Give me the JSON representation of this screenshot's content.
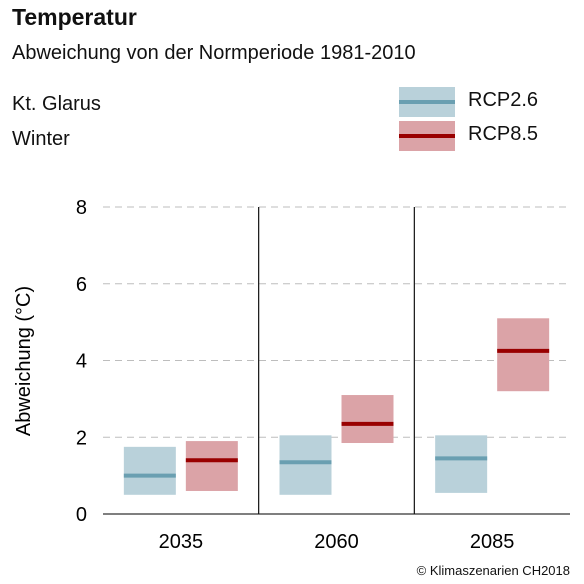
{
  "header": {
    "title": "Temperatur",
    "subtitle": "Abweichung von der Normperiode 1981-2010",
    "region": "Kt. Glarus",
    "season": "Winter"
  },
  "credit": "© Klimaszenarien CH2018",
  "chart_data": {
    "type": "bar",
    "title": "Temperatur",
    "subtitle": "Abweichung von der Normperiode 1981-2010",
    "ylabel": "Abweichung (°C)",
    "xlabel": "",
    "ylim": [
      0,
      8
    ],
    "yticks": [
      0,
      2,
      4,
      6,
      8
    ],
    "grid": true,
    "legend_position": "top-right",
    "categories": [
      "2035",
      "2060",
      "2085"
    ],
    "series": [
      {
        "name": "RCP2.6",
        "box_color": "#b9d1da",
        "line_color": "#6a9fb1",
        "low": [
          0.5,
          0.5,
          0.55
        ],
        "median": [
          1.0,
          1.35,
          1.45
        ],
        "high": [
          1.75,
          2.05,
          2.05
        ]
      },
      {
        "name": "RCP8.5",
        "box_color": "#dba3a7",
        "line_color": "#990000",
        "low": [
          0.6,
          1.85,
          3.2
        ],
        "median": [
          1.4,
          2.35,
          4.25
        ],
        "high": [
          1.9,
          3.1,
          5.1
        ]
      }
    ]
  }
}
